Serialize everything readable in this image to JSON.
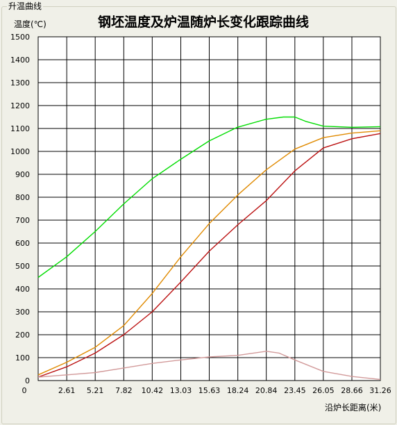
{
  "group_title": "升温曲线",
  "chart_data": {
    "type": "line",
    "title": "钢坯温度及炉温随炉长变化跟踪曲线",
    "ylabel": "温度(℃)",
    "xlabel": "沿炉长距离(米)",
    "xlim": [
      0,
      31.26
    ],
    "ylim": [
      0,
      1500
    ],
    "grid": true,
    "x_ticks": [
      "0",
      "2.61",
      "5.21",
      "7.82",
      "10.42",
      "13.03",
      "15.63",
      "18.24",
      "20.84",
      "23.45",
      "26.05",
      "28.66",
      "31.26"
    ],
    "y_ticks": [
      "0",
      "100",
      "200",
      "300",
      "400",
      "500",
      "600",
      "700",
      "800",
      "900",
      "1000",
      "1100",
      "1200",
      "1300",
      "1400",
      "1500"
    ],
    "series": [
      {
        "color": "#00dd00",
        "x": [
          0,
          2.6,
          5.2,
          7.8,
          10.4,
          13.0,
          15.6,
          18.2,
          20.8,
          22.4,
          23.45,
          24.5,
          26.05,
          28.66,
          31.26
        ],
        "y": [
          450,
          540,
          650,
          770,
          880,
          965,
          1045,
          1105,
          1140,
          1150,
          1150,
          1130,
          1110,
          1105,
          1108
        ]
      },
      {
        "color": "#e08a00",
        "x": [
          0,
          2.61,
          5.21,
          7.82,
          10.42,
          13.03,
          15.63,
          18.24,
          20.84,
          23.45,
          26.05,
          28.66,
          31.26
        ],
        "y": [
          25,
          80,
          145,
          240,
          380,
          540,
          685,
          810,
          920,
          1010,
          1060,
          1080,
          1090
        ]
      },
      {
        "color": "#bb1010",
        "x": [
          0,
          2.61,
          5.21,
          7.82,
          10.42,
          13.03,
          15.63,
          18.24,
          20.84,
          23.45,
          26.05,
          28.66,
          31.26
        ],
        "y": [
          15,
          60,
          120,
          200,
          300,
          430,
          565,
          680,
          785,
          915,
          1015,
          1055,
          1078
        ]
      },
      {
        "color": "#d29a9a",
        "x": [
          0,
          2.61,
          5.21,
          7.82,
          10.42,
          13.03,
          15.63,
          18.24,
          20.84,
          22.0,
          23.45,
          26.05,
          28.66,
          31.26
        ],
        "y": [
          15,
          25,
          35,
          55,
          75,
          90,
          103,
          110,
          128,
          120,
          90,
          40,
          18,
          5
        ]
      }
    ]
  }
}
